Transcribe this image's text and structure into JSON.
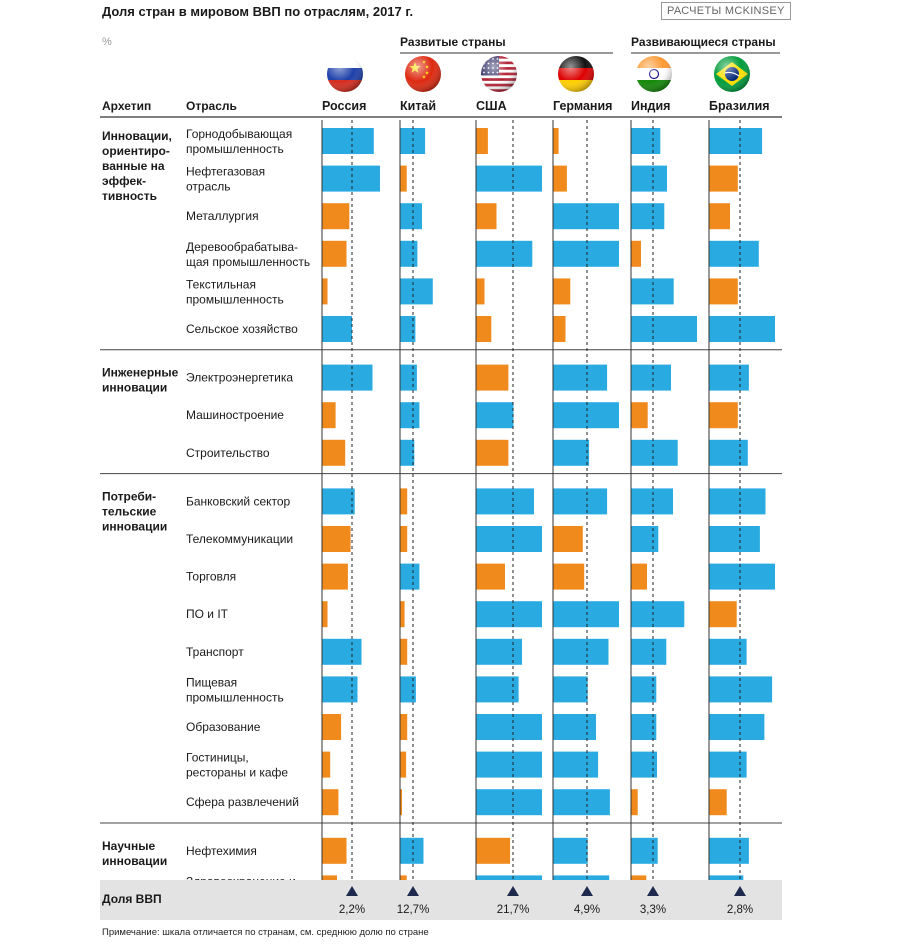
{
  "title": "Доля стран в мировом ВВП по отраслям, 2017 г.",
  "source": "РАСЧЕТЫ MCKINSEY",
  "unit": "%",
  "note": "Примечание: шкала отличается по странам, см. среднюю долю по стране",
  "headers": {
    "archetype": "Архетип",
    "sector": "Отрасль"
  },
  "groups": [
    {
      "label": "Развитые страны"
    },
    {
      "label": "Развивающиеся страны"
    }
  ],
  "colors": {
    "above": "#29abe2",
    "below": "#f08a1c",
    "summary_bg": "#e3e3e3",
    "marker": "#1d2a4d"
  },
  "chart_data": {
    "type": "bar",
    "countries": [
      {
        "name": "Россия",
        "flag": "russia-flag-icon",
        "gdp_share": "2,2%"
      },
      {
        "name": "Китай",
        "flag": "china-flag-icon",
        "gdp_share": "12,7%"
      },
      {
        "name": "США",
        "flag": "usa-flag-icon",
        "gdp_share": "21,7%"
      },
      {
        "name": "Германия",
        "flag": "germany-flag-icon",
        "gdp_share": "4,9%"
      },
      {
        "name": "Индия",
        "flag": "india-flag-icon",
        "gdp_share": "3,3%"
      },
      {
        "name": "Бразилия",
        "flag": "brazil-flag-icon",
        "gdp_share": "2,8%"
      }
    ],
    "summary_label": "Доля ВВП",
    "archetypes": [
      {
        "label": "Инновации, ориентиро- ванные на эффек- тивность",
        "sectors": [
          {
            "label": "Горнодобывающая промышленность",
            "values": [
              3.8,
              24.5,
              7.0,
              0.8,
              4.4,
              4.8
            ]
          },
          {
            "label": "Нефтегазовая отрасль",
            "values": [
              4.8,
              6.5,
              42.0,
              2.0,
              5.4,
              2.6
            ]
          },
          {
            "label": "Металлургия",
            "values": [
              2.0,
              21.5,
              12.0,
              10.0,
              5.0,
              1.9
            ]
          },
          {
            "label": "Деревообрабатыва- щая промышленность",
            "values": [
              1.8,
              17.0,
              33.0,
              10.0,
              1.5,
              4.5
            ]
          },
          {
            "label": "Текстильная промышленность",
            "values": [
              0.4,
              32.0,
              5.0,
              2.5,
              6.4,
              2.6
            ]
          },
          {
            "label": "Сельское хозяйство",
            "values": [
              2.2,
              15.0,
              9.0,
              1.8,
              12.5,
              6.5
            ]
          }
        ]
      },
      {
        "label": "Инженерные инновации",
        "sectors": [
          {
            "label": "Электроэнергетика",
            "values": [
              3.7,
              16.5,
              19.0,
              7.8,
              6.0,
              3.6
            ]
          },
          {
            "label": "Машиностроение",
            "values": [
              1.0,
              19.0,
              22.0,
              13.5,
              2.5,
              2.6
            ]
          },
          {
            "label": "Строительство",
            "values": [
              1.7,
              14.0,
              19.0,
              5.2,
              7.0,
              3.5
            ]
          }
        ]
      },
      {
        "label": "Потреби- тельские инновации",
        "sectors": [
          {
            "label": "Банковский сектор",
            "values": [
              2.4,
              7.0,
              34.0,
              7.8,
              6.3,
              5.1
            ]
          },
          {
            "label": "Телекоммуникации",
            "values": [
              2.1,
              7.0,
              43.0,
              4.3,
              4.1,
              4.6
            ]
          },
          {
            "label": "Торговля",
            "values": [
              1.9,
              19.0,
              17.0,
              4.5,
              2.4,
              7.4
            ]
          },
          {
            "label": "ПО и IT",
            "values": [
              0.4,
              4.5,
              60.0,
              10.0,
              8.0,
              2.5
            ]
          },
          {
            "label": "Транспорт",
            "values": [
              2.9,
              7.0,
              27.0,
              8.0,
              5.3,
              3.4
            ]
          },
          {
            "label": "Пищевая промышленность",
            "values": [
              2.6,
              15.5,
              25.0,
              5.0,
              3.8,
              5.7
            ]
          },
          {
            "label": "Образование",
            "values": [
              1.4,
              7.0,
              47.0,
              6.2,
              3.8,
              5.0
            ]
          },
          {
            "label": "Гостиницы, рестораны и кафе",
            "values": [
              0.6,
              6.0,
              43.0,
              6.5,
              3.9,
              3.4
            ]
          },
          {
            "label": "Сфера развлечений",
            "values": [
              1.2,
              1.5,
              60.0,
              8.2,
              1.0,
              1.6
            ]
          }
        ]
      },
      {
        "label": "Научные инновации",
        "sectors": [
          {
            "label": "Нефтехимия",
            "values": [
              1.8,
              23.0,
              20.0,
              5.0,
              4.0,
              3.6
            ]
          },
          {
            "label": "Здравоохранение и фармацевтика",
            "values": [
              1.1,
              6.5,
              50.0,
              8.1,
              2.3,
              3.1
            ]
          }
        ]
      }
    ]
  }
}
